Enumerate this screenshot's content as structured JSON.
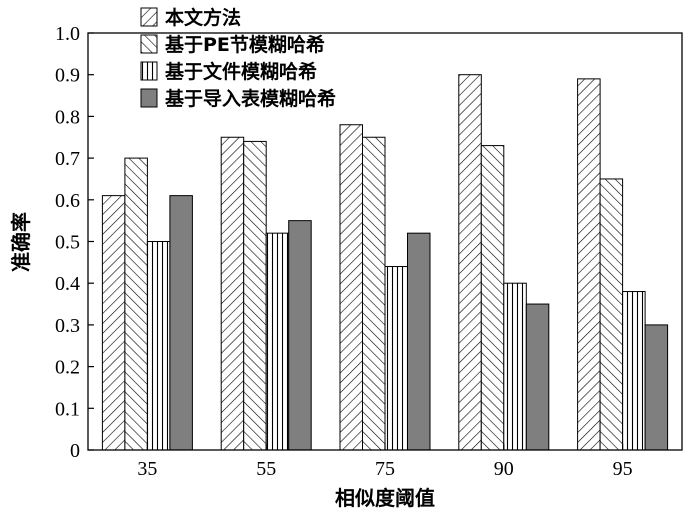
{
  "chart_data": {
    "type": "bar",
    "categories": [
      "35",
      "55",
      "75",
      "90",
      "95"
    ],
    "series": [
      {
        "name": "本文方法",
        "values": [
          0.61,
          0.75,
          0.78,
          0.9,
          0.89
        ],
        "pattern": "diag-right"
      },
      {
        "name": "基于PE节模糊哈希",
        "values": [
          0.7,
          0.74,
          0.75,
          0.73,
          0.65
        ],
        "pattern": "diag-left"
      },
      {
        "name": "基于文件模糊哈希",
        "values": [
          0.5,
          0.52,
          0.44,
          0.4,
          0.38
        ],
        "pattern": "vertical"
      },
      {
        "name": "基于导入表模糊哈希",
        "values": [
          0.61,
          0.55,
          0.52,
          0.35,
          0.3
        ],
        "pattern": "solid"
      }
    ],
    "xlabel": "相似度阈值",
    "ylabel": "准确率",
    "ylim": [
      0,
      1.0
    ],
    "yticks": [
      "0",
      "0.1",
      "0.2",
      "0.3",
      "0.4",
      "0.5",
      "0.6",
      "0.7",
      "0.8",
      "0.9",
      "1.0"
    ],
    "grid": false,
    "legend_position": "top-left",
    "colors": {
      "solid_fill": "#7f7f7f",
      "hatch": "#000000",
      "background": "#ffffff"
    }
  }
}
